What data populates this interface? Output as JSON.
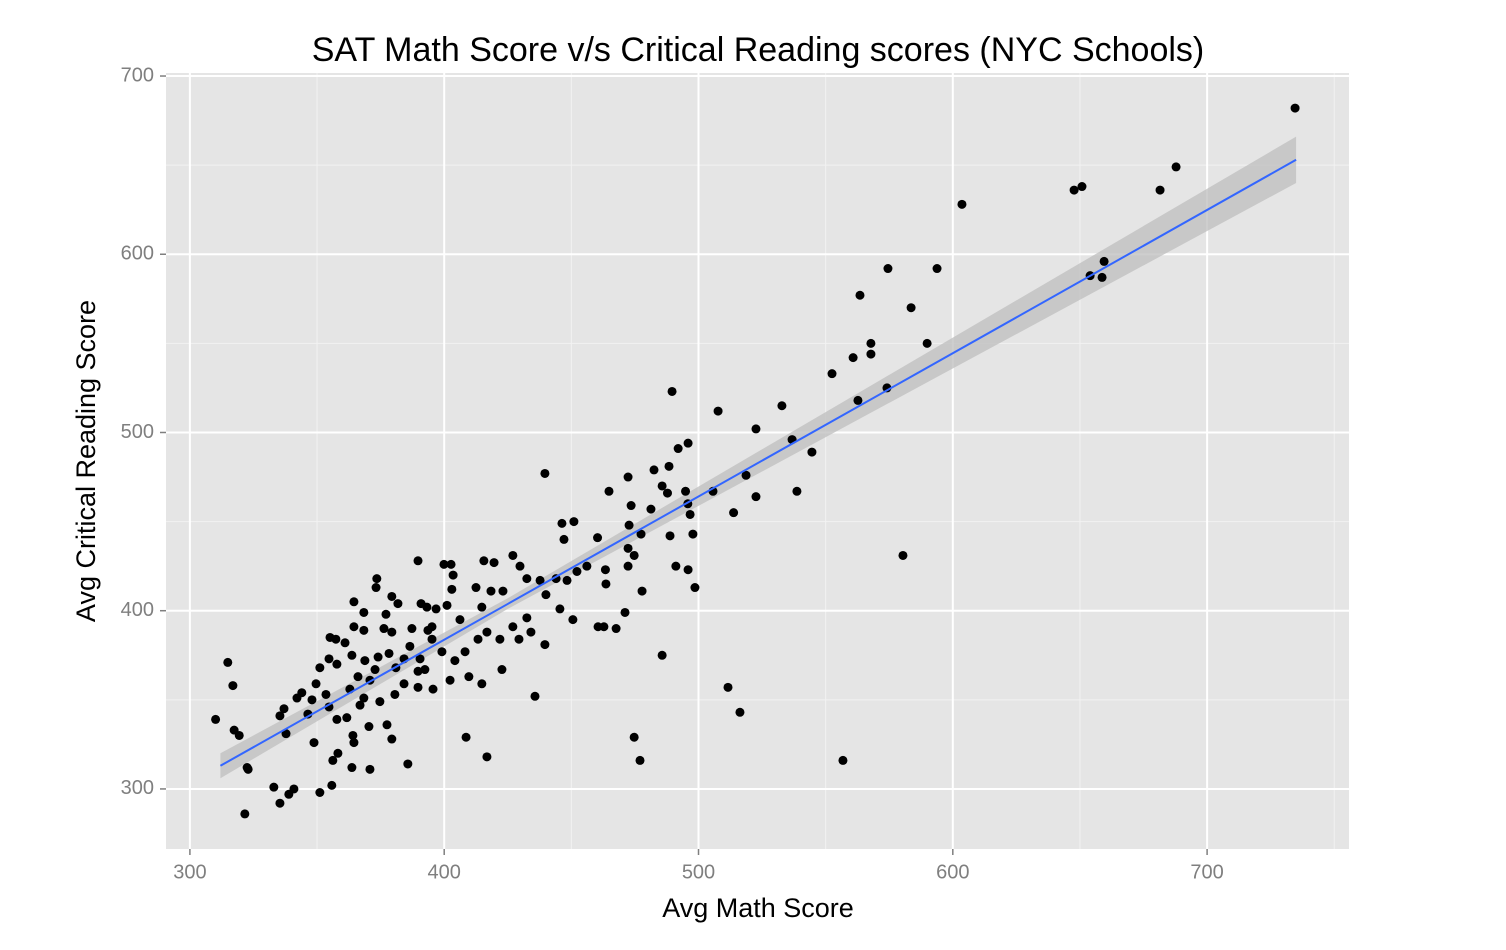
{
  "chart_data": {
    "type": "scatter",
    "title": "SAT Math Score v/s Critical Reading scores (NYC Schools)",
    "x_label": "Avg Math Score",
    "y_label": "Avg Critical Reading Score",
    "xlim": [
      290.6,
      755.8
    ],
    "ylim": [
      266.3,
      701.7
    ],
    "xticks": [
      300,
      400,
      500,
      600,
      700
    ],
    "yticks": [
      300,
      400,
      500,
      600,
      700
    ],
    "minor_xticks": [
      350,
      450,
      550,
      650,
      750
    ],
    "minor_yticks": [
      350,
      450,
      550,
      650
    ],
    "grid": true,
    "series": [
      {
        "color": "#000000",
        "x": [
          734.6,
          687.8,
          650.8,
          647.7,
          681.5,
          603.6,
          574.5,
          593.8,
          563.5,
          583.6,
          659.5,
          654,
          658.7,
          567.8,
          589.9,
          567.8,
          560.8,
          552.5,
          574.1,
          562.7,
          489.6,
          507.7,
          532.8,
          522.6,
          536.8,
          544.6,
          495.9,
          492,
          439.6,
          518.7,
          482.5,
          472.3,
          488.4,
          538.7,
          505.7,
          464.8,
          485.7,
          522.6,
          487.8,
          494.9,
          513.8,
          495.8,
          496.7,
          473.5,
          451,
          446.3,
          472.7,
          481.3,
          460.3,
          477.4,
          488.8,
          497.8,
          472.3,
          474.7,
          580.4,
          447.1,
          463.4,
          472.3,
          491.1,
          495.9,
          498.6,
          477.8,
          463.6,
          471.1,
          460.5,
          462.8,
          467.6,
          485.7,
          511.6,
          516.3,
          474.7,
          477,
          556.8,
          435.7,
          450.6,
          408.6,
          416.8,
          385.7,
          370.8,
          363.7,
          356.2,
          355.8,
          351.1,
          314.9,
          316.9,
          310.1,
          317.4,
          319.4,
          322.5,
          322.9,
          321.6,
          333,
          335.4,
          338.9,
          340.9,
          337.8,
          335.4,
          337,
          342.1,
          344,
          373.5,
          373.2,
          364.5,
          379.4,
          381.8,
          390.9,
          393.2,
          396.8,
          401.1,
          399.9,
          402.7,
          403.5,
          415.6,
          419.6,
          427,
          429.8,
          432.5,
          423.1,
          412.5,
          418.4,
          414.8,
          406.2,
          395.2,
          387.3,
          377.1,
          368.4,
          357.4,
          355.1,
          361,
          354.7,
          363.7,
          368.8,
          378.3,
          386.5,
          390.5,
          399.1,
          404.2,
          409.7,
          414.8,
          422.7,
          416.8,
          421.9,
          427,
          434.1,
          439.6,
          445.5,
          440,
          437.7,
          444,
          448.3,
          452.2,
          456.1,
          389.7,
          403,
          357.8,
          351.1,
          349.6,
          346.4,
          348.8,
          358.2,
          364.1,
          370.4,
          374.7,
          380.6,
          384.2,
          389.7,
          395.6,
          402.3,
          361.7,
          357.8,
          364.5,
          377.5,
          379.4,
          368.4,
          362.9,
          370.8,
          381,
          392.4,
          395.2,
          379.4,
          368.4,
          364.5,
          376.3,
          348,
          354.7,
          353.5,
          366.9,
          374,
          384.2,
          389.7,
          408.2,
          413.3,
          432.5,
          429.4,
          393.6,
          372.8,
          366.1
        ],
        "y": [
          682,
          649,
          638,
          636,
          636,
          628,
          592,
          592,
          577,
          570,
          596,
          588,
          587,
          550,
          550,
          544,
          542,
          533,
          525,
          518,
          523,
          512,
          515,
          502,
          496,
          489,
          494,
          491,
          477,
          476,
          479,
          475,
          481,
          467,
          467,
          467,
          470,
          464,
          466,
          467,
          455,
          460,
          454,
          459,
          450,
          449,
          448,
          457,
          441,
          443,
          442,
          443,
          435,
          431,
          431,
          440,
          423,
          425,
          425,
          423,
          413,
          411,
          415,
          399,
          391,
          391,
          390,
          375,
          357,
          343,
          329,
          316,
          316,
          352,
          395,
          329,
          318,
          314,
          311,
          312,
          316,
          302,
          298,
          371,
          358,
          339,
          333,
          330,
          312,
          311,
          286,
          301,
          292,
          297,
          300,
          331,
          341,
          345,
          351,
          354,
          418,
          413,
          405,
          408,
          404,
          404,
          402,
          401,
          403,
          426,
          426,
          420,
          428,
          427,
          431,
          425,
          418,
          411,
          413,
          411,
          402,
          395,
          391,
          390,
          398,
          399,
          384,
          385,
          382,
          373,
          375,
          372,
          376,
          380,
          373,
          377,
          372,
          363,
          359,
          367,
          388,
          384,
          391,
          388,
          381,
          401,
          409,
          417,
          418,
          417,
          422,
          425,
          428,
          412,
          370,
          368,
          359,
          342,
          326,
          320,
          330,
          335,
          349,
          353,
          359,
          357,
          356,
          361,
          340,
          339,
          326,
          336,
          328,
          351,
          356,
          361,
          368,
          367,
          384,
          388,
          389,
          391,
          390,
          350,
          346,
          353,
          347,
          374,
          373,
          366,
          377,
          384,
          396,
          384,
          389,
          367,
          363
        ]
      }
    ],
    "fit": {
      "color": "#3366ff",
      "band_color": "#bdbdbd",
      "x": [
        312,
        425,
        735
      ],
      "y": [
        313,
        403.8,
        653
      ],
      "lower": [
        306,
        401,
        640
      ],
      "upper": [
        320,
        407,
        666
      ]
    }
  }
}
